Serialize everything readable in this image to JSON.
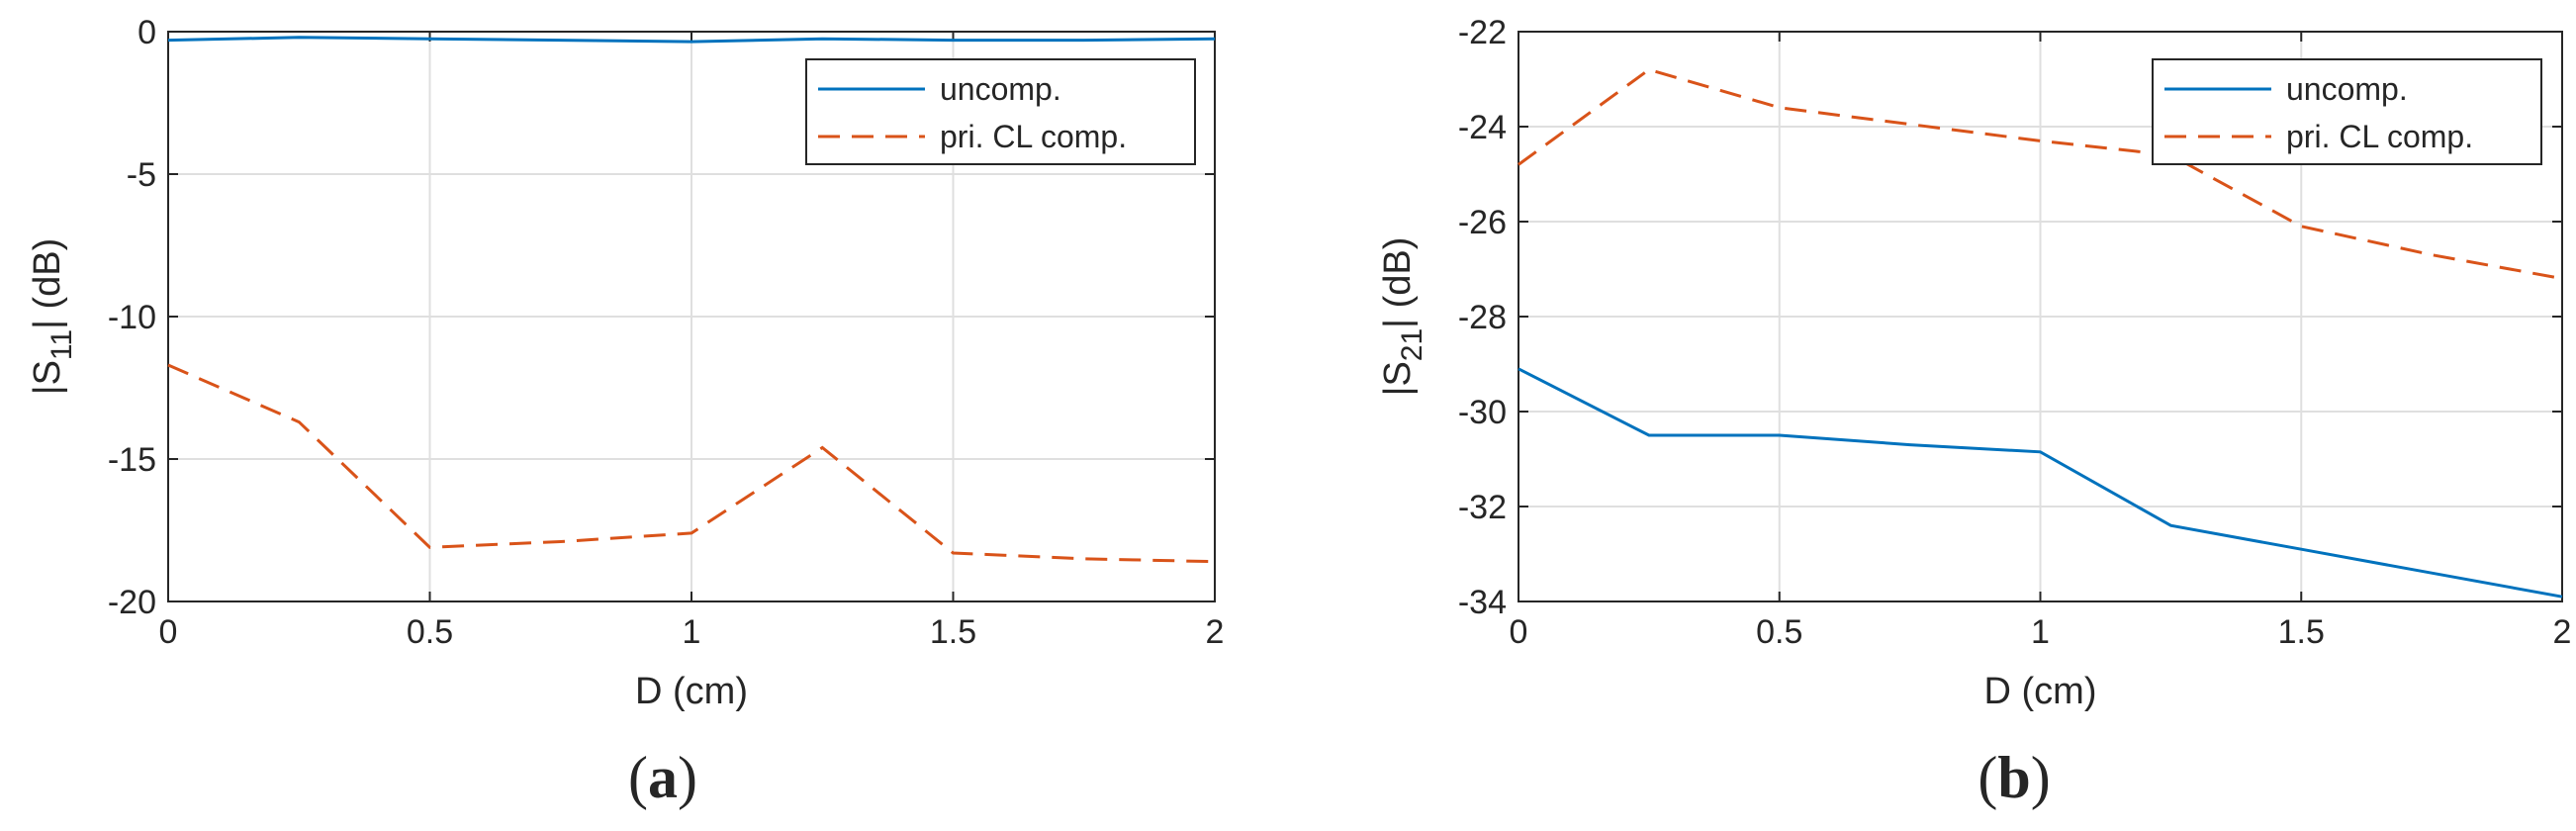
{
  "chart_data": [
    {
      "type": "line",
      "panel_label": "a",
      "xlabel": "D (cm)",
      "ylabel_main": "|S",
      "ylabel_sub": "11",
      "ylabel_tail": "| (dB)",
      "xlim": [
        0,
        2
      ],
      "ylim": [
        -20,
        0
      ],
      "xticks": [
        "0",
        "0.5",
        "1",
        "1.5",
        "2"
      ],
      "yticks": [
        "0",
        "-5",
        "-10",
        "-15",
        "-20"
      ],
      "grid": true,
      "legend_position": "top-right",
      "x": [
        0,
        0.25,
        0.5,
        0.75,
        1,
        1.25,
        1.5,
        1.75,
        2
      ],
      "series": [
        {
          "name": "uncomp.",
          "color": "#0072BD",
          "style": "solid",
          "values": [
            -0.3,
            -0.2,
            -0.25,
            -0.3,
            -0.35,
            -0.25,
            -0.3,
            -0.3,
            -0.25
          ]
        },
        {
          "name": "pri. CL comp.",
          "color": "#D95319",
          "style": "dashed",
          "values": [
            -11.7,
            -13.7,
            -18.1,
            -17.9,
            -17.6,
            -14.6,
            -18.3,
            -18.5,
            -18.6
          ]
        }
      ]
    },
    {
      "type": "line",
      "panel_label": "b",
      "xlabel": "D (cm)",
      "ylabel_main": "|S",
      "ylabel_sub": "21",
      "ylabel_tail": "| (dB)",
      "xlim": [
        0,
        2
      ],
      "ylim": [
        -34,
        -22
      ],
      "xticks": [
        "0",
        "0.5",
        "1",
        "1.5",
        "2"
      ],
      "yticks": [
        "-22",
        "-24",
        "-26",
        "-28",
        "-30",
        "-32",
        "-34"
      ],
      "grid": true,
      "legend_position": "top-right",
      "x": [
        0,
        0.25,
        0.5,
        0.75,
        1,
        1.25,
        1.5,
        1.75,
        2
      ],
      "series": [
        {
          "name": "uncomp.",
          "color": "#0072BD",
          "style": "solid",
          "values": [
            -29.1,
            -30.5,
            -30.5,
            -30.7,
            -30.85,
            -32.4,
            -32.9,
            -33.4,
            -33.9
          ]
        },
        {
          "name": "pri. CL comp.",
          "color": "#D95319",
          "style": "dashed",
          "values": [
            -24.8,
            -22.8,
            -23.6,
            -23.95,
            -24.3,
            -24.6,
            -26.1,
            -26.7,
            -27.2
          ]
        }
      ]
    }
  ]
}
